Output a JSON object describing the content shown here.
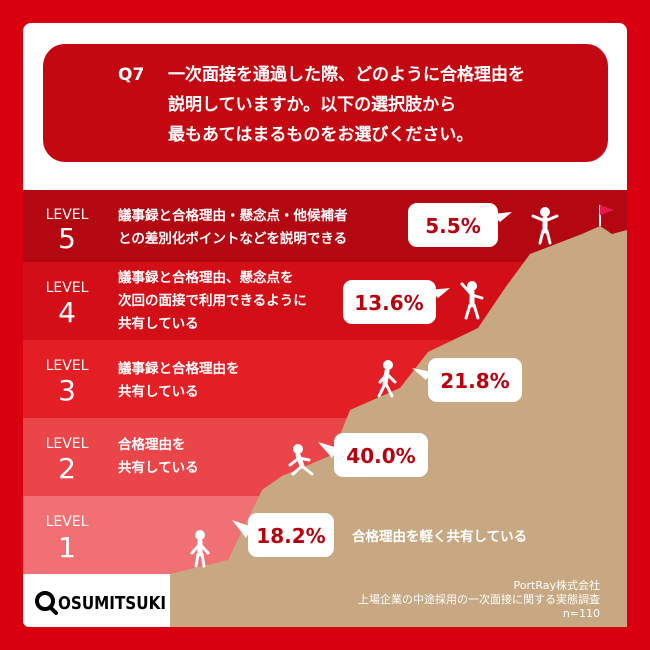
{
  "chart_data": {
    "type": "bar",
    "title": "Q7　一次面接を通過した際、どのように合格理由を説明していますか。以下の選択肢から最もあてはまるものをお選びください。",
    "title_lines": [
      "Q7",
      "一次面接を通過した際、どのように合格理由を",
      "説明していますか。以下の選択肢から",
      "最もあてはまるものをお選びください。"
    ],
    "unit": "%",
    "categories": [
      "LEVEL 1",
      "LEVEL 2",
      "LEVEL 3",
      "LEVEL 4",
      "LEVEL 5"
    ],
    "values": [
      18.2,
      40.0,
      21.8,
      13.6,
      5.5
    ],
    "value_labels": [
      "18.2%",
      "40.0%",
      "21.8%",
      "13.6%",
      "5.5%"
    ],
    "level_word": "LEVEL",
    "level_numbers": [
      "1",
      "2",
      "3",
      "4",
      "5"
    ],
    "descriptions": [
      [
        "合格理由を軽く共有している"
      ],
      [
        "合格理由を",
        "共有している"
      ],
      [
        "議事録と合格理由を",
        "共有している"
      ],
      [
        "議事録と合格理由、懸念点を",
        "次回の面接で利用できるように",
        "共有している"
      ],
      [
        "議事録と合格理由・懸念点・他候補者",
        "との差別化ポイントなどを説明できる"
      ]
    ]
  },
  "logo": {
    "text": "OSUMITSUKI"
  },
  "source": {
    "company": "PortRay株式会社",
    "survey": "上場企業の中途採用の一次面接に関する実態調査",
    "n": "n=110"
  },
  "colors": {
    "frame": "#d8000f",
    "title_box": "#c40812",
    "band_level1": "#f07073",
    "band_level2": "#ea4548",
    "band_level3": "#e31e24",
    "band_level4": "#d20e17",
    "band_level5": "#b30812",
    "mountain": "#c7a882",
    "value_text": "#b8000f",
    "flag": "#e8184e"
  }
}
